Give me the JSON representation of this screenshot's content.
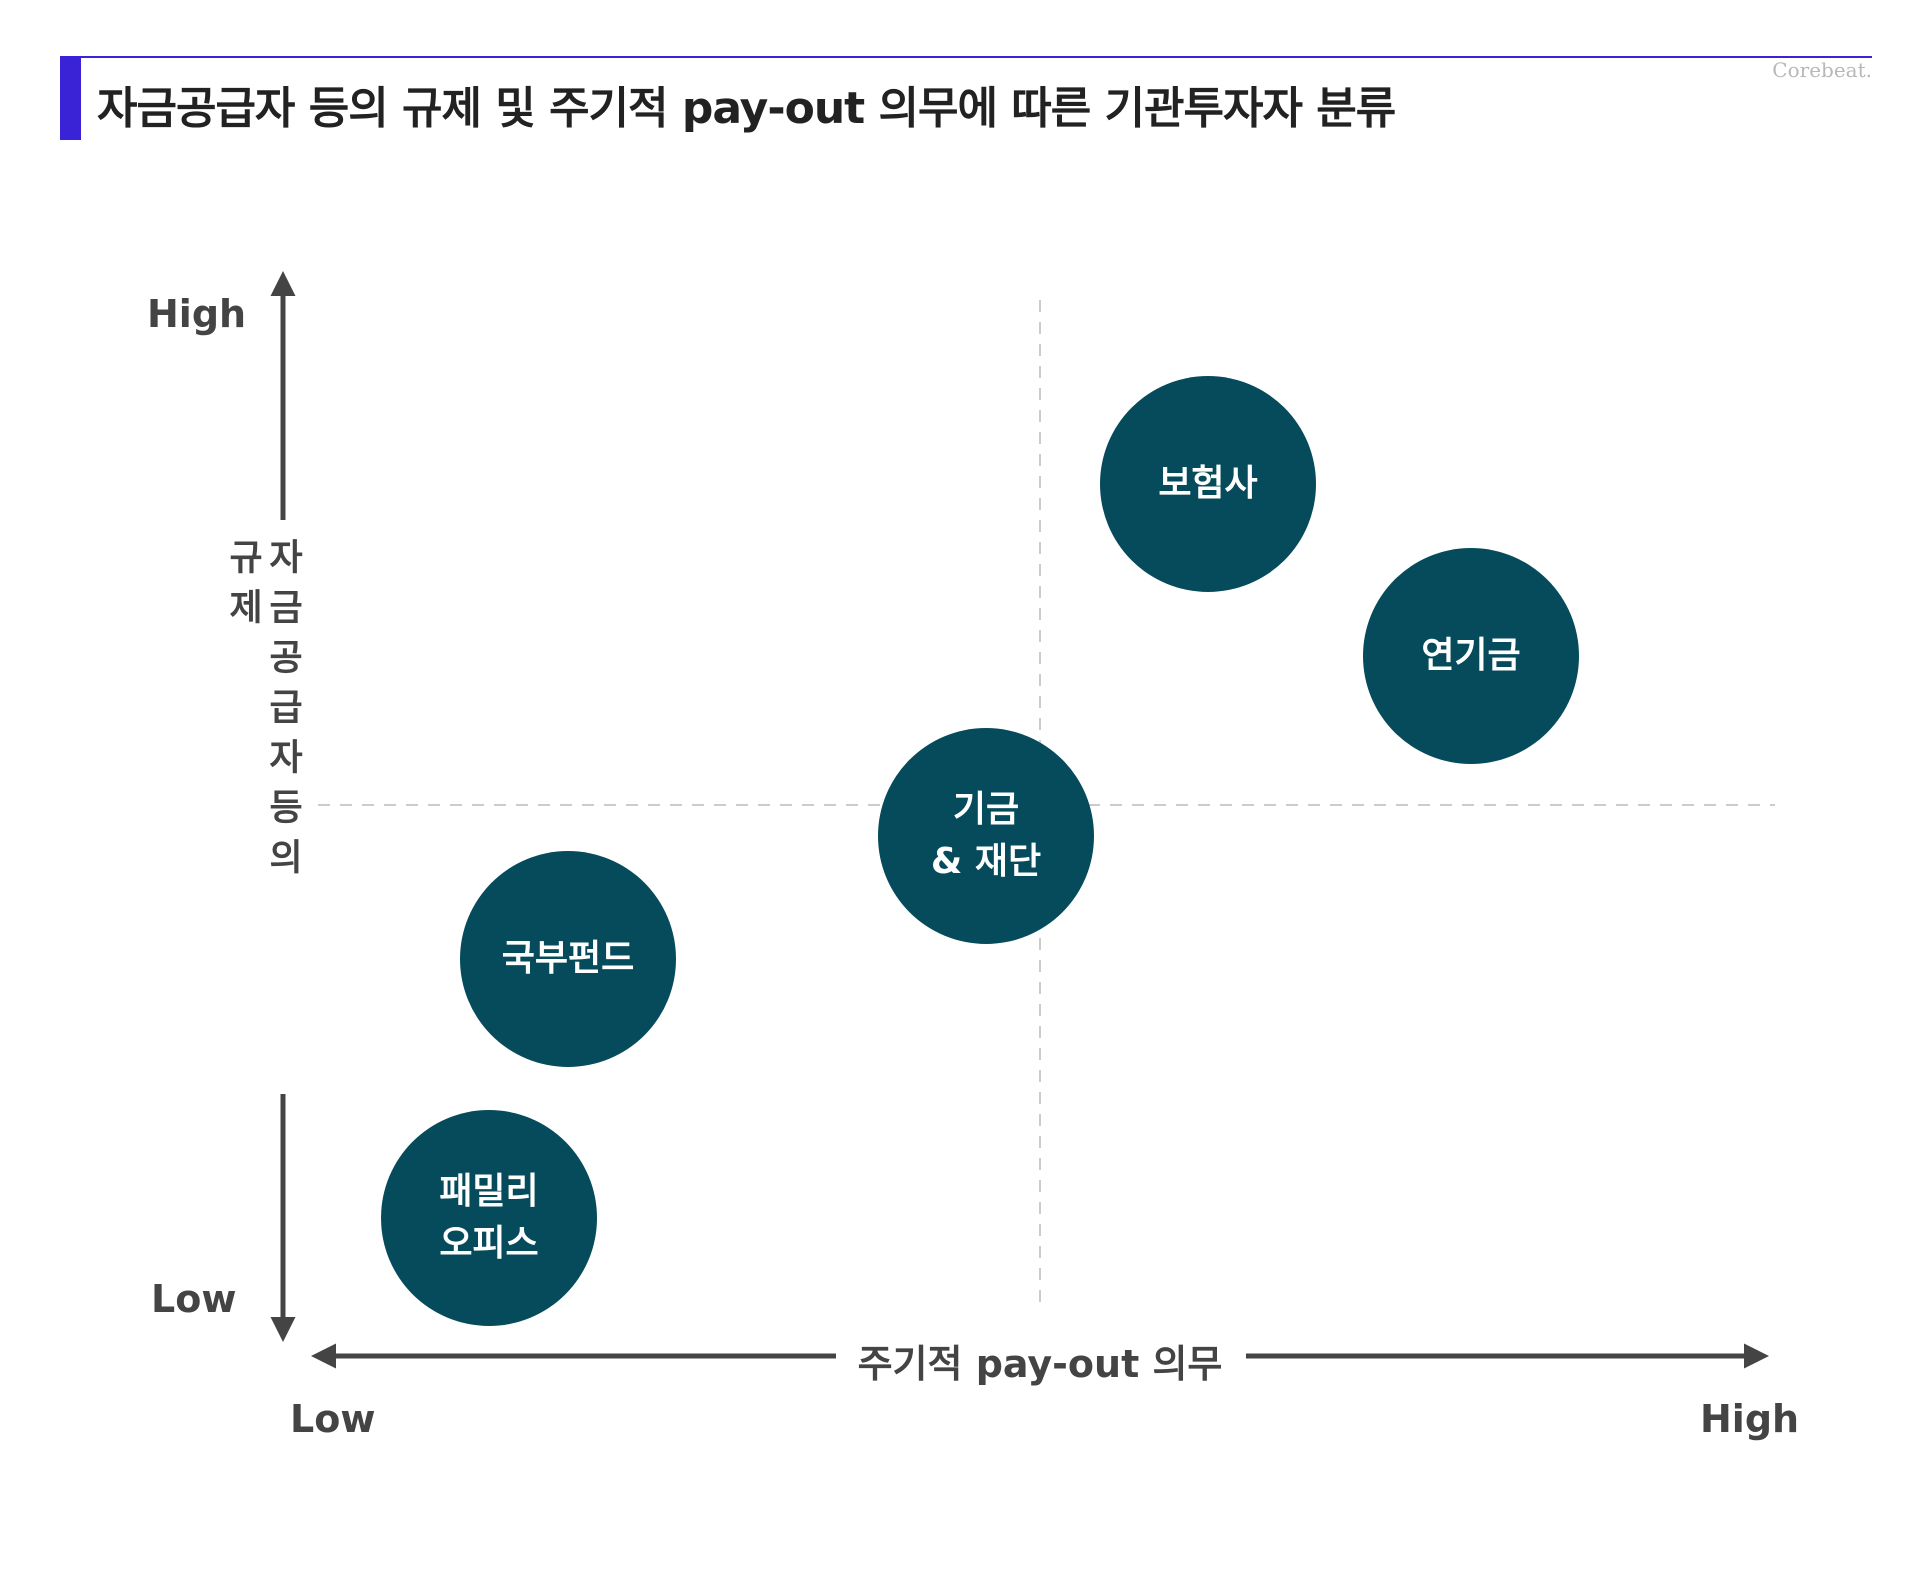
{
  "title": "자금공급자 등의 규제 및 주기적 pay-out 의무에 따른 기관투자자 분류",
  "brand": "Corebeat.",
  "y_axis": {
    "title": "자금공급자등의\n규제",
    "high_label": "High",
    "low_label": "Low"
  },
  "x_axis": {
    "title": "주기적 pay-out 의무",
    "low_label": "Low",
    "high_label": "High"
  },
  "colors": {
    "accent": "#3a22d6",
    "bubble": "#064b5c",
    "axis": "#444444",
    "divider": "#cccccc"
  },
  "bubbles": [
    {
      "label": "보험사"
    },
    {
      "label": "연기금"
    },
    {
      "label": "기금\n& 재단"
    },
    {
      "label": "국부펀드"
    },
    {
      "label": "패밀리\n오피스"
    }
  ]
}
